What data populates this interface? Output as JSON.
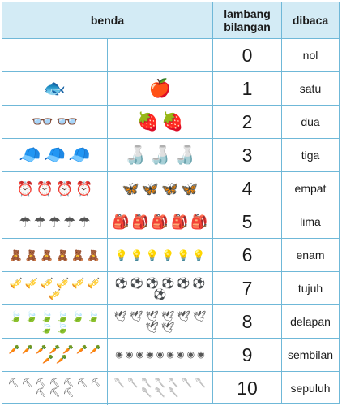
{
  "header": {
    "benda": "benda",
    "lambang": "lambang\nbilangan",
    "dibaca": "dibaca"
  },
  "rows": [
    {
      "numeral": "0",
      "word": "nol",
      "left": {
        "icon": "",
        "count": 0,
        "name": ""
      },
      "right": {
        "icon": "",
        "count": 0,
        "name": ""
      }
    },
    {
      "numeral": "1",
      "word": "satu",
      "left": {
        "icon": "🐟",
        "count": 1,
        "name": "fish-icon"
      },
      "right": {
        "icon": "🍎",
        "count": 1,
        "name": "apple-icon"
      }
    },
    {
      "numeral": "2",
      "word": "dua",
      "left": {
        "icon": "👓",
        "count": 2,
        "name": "glasses-icon"
      },
      "right": {
        "icon": "🍓",
        "count": 2,
        "name": "strawberry-icon"
      }
    },
    {
      "numeral": "3",
      "word": "tiga",
      "left": {
        "icon": "🧢",
        "count": 3,
        "name": "cap-icon"
      },
      "right": {
        "icon": "🍶",
        "count": 3,
        "name": "bottle-icon"
      }
    },
    {
      "numeral": "4",
      "word": "empat",
      "left": {
        "icon": "⏰",
        "count": 4,
        "name": "alarm-clock-icon"
      },
      "right": {
        "icon": "🦋",
        "count": 4,
        "name": "butterfly-icon"
      }
    },
    {
      "numeral": "5",
      "word": "lima",
      "left": {
        "icon": "☂",
        "count": 5,
        "name": "umbrella-icon"
      },
      "right": {
        "icon": "🎒",
        "count": 5,
        "name": "backpack-icon"
      }
    },
    {
      "numeral": "6",
      "word": "enam",
      "left": {
        "icon": "🧸",
        "count": 6,
        "name": "teddy-bear-icon"
      },
      "right": {
        "icon": "💡",
        "count": 6,
        "name": "light-bulb-icon"
      }
    },
    {
      "numeral": "7",
      "word": "tujuh",
      "left": {
        "icon": "🎺",
        "count": 7,
        "name": "trumpet-icon"
      },
      "right": {
        "icon": "⚽",
        "count": 7,
        "name": "soccer-ball-icon"
      }
    },
    {
      "numeral": "8",
      "word": "delapan",
      "left": {
        "icon": "🍃",
        "count": 8,
        "name": "leaf-icon"
      },
      "right": {
        "icon": "🕊",
        "count": 8,
        "name": "bird-icon"
      }
    },
    {
      "numeral": "9",
      "word": "sembilan",
      "left": {
        "icon": "🥕",
        "count": 9,
        "name": "carrot-icon"
      },
      "right": {
        "icon": "◉",
        "count": 9,
        "name": "marble-icon"
      }
    },
    {
      "numeral": "10",
      "word": "sepuluh",
      "left": {
        "icon": "⛏",
        "count": 10,
        "name": "trowel-icon"
      },
      "right": {
        "icon": "🥄",
        "count": 10,
        "name": "spoon-icon"
      }
    }
  ]
}
